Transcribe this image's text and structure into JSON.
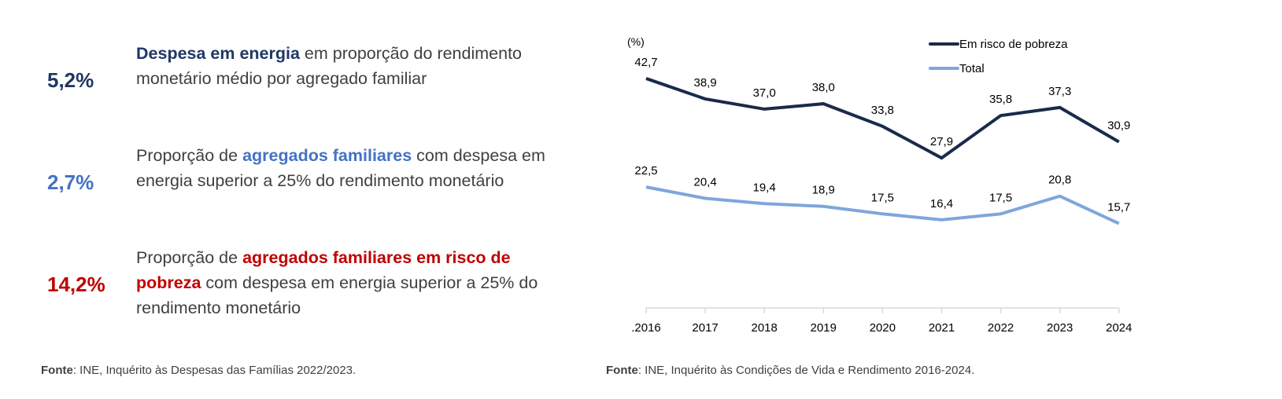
{
  "stats": [
    {
      "value": "5,2%",
      "color": "#1f3864",
      "highlight": "Despesa em energia",
      "before": "",
      "after": " em proporção do rendimento monetário médio por agregado familiar"
    },
    {
      "value": "2,7%",
      "color": "#4472c4",
      "highlight": "agregados familiares",
      "before": "Proporção de ",
      "after": " com despesa em energia superior a 25% do rendimento monetário"
    },
    {
      "value": "14,2%",
      "color": "#c00000",
      "highlight": "agregados familiares em risco de pobreza",
      "before": "Proporção de ",
      "after": " com despesa em energia superior a 25% do rendimento  monetário"
    }
  ],
  "source_left": {
    "label": "Fonte",
    "text": ": INE, Inquérito às Despesas das Famílias 2022/2023."
  },
  "source_right": {
    "label": "Fonte",
    "text": ": INE, Inquérito às Condições de Vida e Rendimento 2016-2024."
  },
  "chart_data": {
    "type": "line",
    "ylabel": "(%)",
    "categories": [
      ".2016",
      "2017",
      "2018",
      "2019",
      "2020",
      "2021",
      "2022",
      "2023",
      "2024"
    ],
    "series": [
      {
        "name": "Em risco de pobreza",
        "color": "#1a2a4a",
        "values": [
          42.7,
          38.9,
          37.0,
          38.0,
          33.8,
          27.9,
          35.8,
          37.3,
          30.9
        ],
        "labels": [
          "42,7",
          "38,9",
          "37,0",
          "38,0",
          "33,8",
          "27,9",
          "35,8",
          "37,3",
          "30,9"
        ]
      },
      {
        "name": "Total",
        "color": "#7ea6dc",
        "values": [
          22.5,
          20.4,
          19.4,
          18.9,
          17.5,
          16.4,
          17.5,
          20.8,
          15.7
        ],
        "labels": [
          "22,5",
          "20,4",
          "19,4",
          "18,9",
          "17,5",
          "16,4",
          "17,5",
          "20,8",
          "15,7"
        ]
      }
    ],
    "ylim": [
      0,
      45
    ],
    "legend": "top-right",
    "grid": false
  }
}
